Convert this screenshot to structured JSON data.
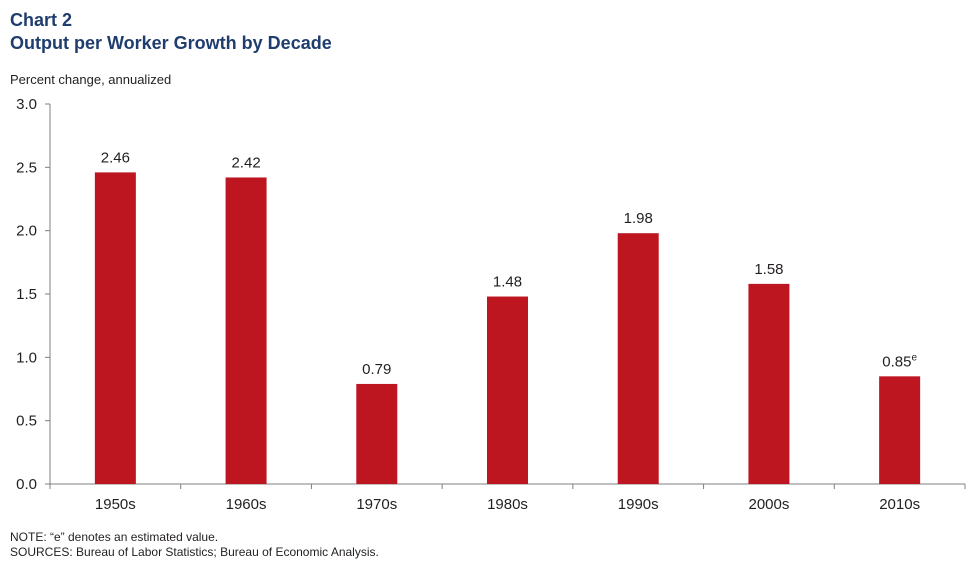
{
  "header": {
    "chart_label": "Chart 2",
    "title": "Output per Worker Growth by Decade",
    "unit_label": "Percent change, annualized"
  },
  "footer": {
    "note": "NOTE: “e” denotes an estimated value.",
    "sources": "SOURCES: Bureau of Labor Statistics; Bureau of Economic Analysis."
  },
  "colors": {
    "bar": "#be1621",
    "title": "#1f3d6e",
    "axis": "#7f7f7f"
  },
  "chart_data": {
    "type": "bar",
    "title": "Output per Worker Growth by Decade",
    "xlabel": "",
    "ylabel": "Percent change, annualized",
    "categories": [
      "1950s",
      "1960s",
      "1970s",
      "1980s",
      "1990s",
      "2000s",
      "2010s"
    ],
    "values": [
      2.46,
      2.42,
      0.79,
      1.48,
      1.98,
      1.58,
      0.85
    ],
    "value_labels": [
      "2.46",
      "2.42",
      "0.79",
      "1.48",
      "1.98",
      "1.58",
      "0.85"
    ],
    "value_label_superscripts": [
      "",
      "",
      "",
      "",
      "",
      "",
      "e"
    ],
    "ylim": [
      0,
      3.0
    ],
    "yticks": [
      "0.0",
      "0.5",
      "1.0",
      "1.5",
      "2.0",
      "2.5",
      "3.0"
    ],
    "ytick_values": [
      0,
      0.5,
      1.0,
      1.5,
      2.0,
      2.5,
      3.0
    ],
    "grid": false,
    "legend": "none"
  }
}
